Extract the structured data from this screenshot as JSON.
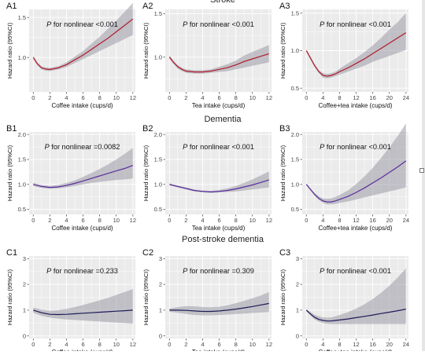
{
  "rows": [
    {
      "title": "Stroke"
    },
    {
      "title": "Dementia"
    },
    {
      "title": "Post-stroke dementia"
    }
  ],
  "colors": {
    "background": "#ffffff",
    "panel": "#ebebeb",
    "grid": "#ffffff",
    "band": "#9b9ba6",
    "band_opacity": 0.55,
    "stroke_line": "#b2182b",
    "dementia_line": "#5b2c9f",
    "psd_line": "#1e1a57"
  },
  "chart_data": [
    {
      "id": "A1",
      "type": "line",
      "row": 0,
      "col": 0,
      "annotation_p": "P",
      "annotation_rest": " for nonlinear <0.001",
      "xlabel": "Coffee intake (cups/d)",
      "ylabel": "Hazard ratio (95%CI)",
      "xlim": [
        -0.5,
        12.3
      ],
      "ylim": [
        0.57,
        1.6
      ],
      "xticks": [
        0,
        2,
        4,
        6,
        8,
        10,
        12
      ],
      "yticks": [
        1.0,
        1.5
      ],
      "ytick_labels": [
        "1.0",
        "1.5"
      ],
      "line_color": "#b2182b",
      "x": [
        0,
        0.5,
        1,
        1.5,
        2,
        3,
        4,
        5,
        6,
        7,
        8,
        9,
        10,
        11,
        12
      ],
      "y": [
        1.0,
        0.92,
        0.87,
        0.855,
        0.85,
        0.87,
        0.91,
        0.97,
        1.03,
        1.1,
        1.17,
        1.24,
        1.32,
        1.4,
        1.48
      ],
      "lower": [
        0.98,
        0.9,
        0.85,
        0.835,
        0.83,
        0.85,
        0.88,
        0.93,
        0.98,
        1.03,
        1.08,
        1.13,
        1.18,
        1.23,
        1.28
      ],
      "upper": [
        1.02,
        0.94,
        0.89,
        0.875,
        0.87,
        0.89,
        0.94,
        1.01,
        1.08,
        1.17,
        1.26,
        1.36,
        1.46,
        1.57,
        1.68
      ]
    },
    {
      "id": "A2",
      "type": "line",
      "row": 0,
      "col": 1,
      "annotation_p": "P",
      "annotation_rest": " for nonlinear <0.001",
      "xlabel": "Tea intake (cups/d)",
      "ylabel": "Hazard ratio (95%CI)",
      "xlim": [
        -0.5,
        12.3
      ],
      "ylim": [
        0.6,
        1.55
      ],
      "xticks": [
        0,
        2,
        4,
        6,
        8,
        10,
        12
      ],
      "yticks": [
        1.0,
        1.5
      ],
      "ytick_labels": [
        "1.0",
        "1.5"
      ],
      "line_color": "#b2182b",
      "x": [
        0,
        0.5,
        1,
        1.5,
        2,
        3,
        4,
        5,
        6,
        7,
        8,
        9,
        10,
        11,
        12
      ],
      "y": [
        1.0,
        0.94,
        0.89,
        0.86,
        0.84,
        0.83,
        0.83,
        0.84,
        0.86,
        0.88,
        0.91,
        0.95,
        0.98,
        1.01,
        1.04
      ],
      "lower": [
        0.98,
        0.92,
        0.87,
        0.84,
        0.82,
        0.81,
        0.81,
        0.82,
        0.83,
        0.84,
        0.86,
        0.88,
        0.9,
        0.92,
        0.94
      ],
      "upper": [
        1.02,
        0.96,
        0.91,
        0.88,
        0.86,
        0.85,
        0.85,
        0.86,
        0.89,
        0.92,
        0.96,
        1.02,
        1.06,
        1.1,
        1.14
      ]
    },
    {
      "id": "A3",
      "type": "line",
      "row": 0,
      "col": 2,
      "annotation_p": "P",
      "annotation_rest": " for nonlinear <0.001",
      "xlabel": "Coffee+tea intake (cups/d)",
      "ylabel": "Hazard ratio (95%CI)",
      "xlim": [
        -1,
        24.6
      ],
      "ylim": [
        0.45,
        1.55
      ],
      "xticks": [
        0,
        4,
        8,
        12,
        16,
        20,
        24
      ],
      "yticks": [
        0.5,
        1.0,
        1.5
      ],
      "ytick_labels": [
        "0.5",
        "1.0",
        "1.5"
      ],
      "line_color": "#b2182b",
      "x": [
        0,
        1,
        2,
        3,
        4,
        5,
        6,
        7,
        8,
        10,
        12,
        14,
        16,
        18,
        20,
        22,
        24
      ],
      "y": [
        1.0,
        0.9,
        0.8,
        0.72,
        0.67,
        0.66,
        0.67,
        0.69,
        0.72,
        0.77,
        0.83,
        0.89,
        0.96,
        1.03,
        1.1,
        1.17,
        1.24
      ],
      "lower": [
        0.98,
        0.88,
        0.78,
        0.7,
        0.64,
        0.63,
        0.64,
        0.66,
        0.68,
        0.72,
        0.76,
        0.8,
        0.85,
        0.89,
        0.93,
        0.97,
        1.01
      ],
      "upper": [
        1.02,
        0.92,
        0.82,
        0.74,
        0.7,
        0.69,
        0.7,
        0.72,
        0.76,
        0.83,
        0.9,
        0.98,
        1.07,
        1.17,
        1.28,
        1.38,
        1.5
      ]
    },
    {
      "id": "B1",
      "type": "line",
      "row": 1,
      "col": 0,
      "annotation_p": "P",
      "annotation_rest": " for nonlinear =0.0082",
      "xlabel": "Coffee intake (cups/d)",
      "ylabel": "Hazard ratio (95%CI)",
      "xlim": [
        -0.5,
        12.3
      ],
      "ylim": [
        0.4,
        2.05
      ],
      "xticks": [
        0,
        2,
        4,
        6,
        8,
        10,
        12
      ],
      "yticks": [
        0.5,
        1.0,
        1.5,
        2.0
      ],
      "ytick_labels": [
        "0.5",
        "1.0",
        "1.5",
        "2.0"
      ],
      "line_color": "#5b2c9f",
      "x": [
        0,
        1,
        2,
        3,
        4,
        5,
        6,
        7,
        8,
        9,
        10,
        11,
        12
      ],
      "y": [
        1.0,
        0.96,
        0.94,
        0.95,
        0.98,
        1.02,
        1.07,
        1.12,
        1.17,
        1.22,
        1.27,
        1.32,
        1.38
      ],
      "lower": [
        0.97,
        0.93,
        0.91,
        0.92,
        0.94,
        0.97,
        1.0,
        1.03,
        1.05,
        1.07,
        1.09,
        1.1,
        1.12
      ],
      "upper": [
        1.03,
        0.99,
        0.97,
        0.99,
        1.03,
        1.08,
        1.15,
        1.23,
        1.31,
        1.4,
        1.5,
        1.61,
        1.73
      ]
    },
    {
      "id": "B2",
      "type": "line",
      "row": 1,
      "col": 1,
      "annotation_p": "P",
      "annotation_rest": " for nonlinear <0.001",
      "xlabel": "Tea intake (cups/d)",
      "ylabel": "Hazard ratio (95%CI)",
      "xlim": [
        -0.5,
        12.3
      ],
      "ylim": [
        0.4,
        2.05
      ],
      "xticks": [
        0,
        2,
        4,
        6,
        8,
        10,
        12
      ],
      "yticks": [
        0.5,
        1.0,
        1.5,
        2.0
      ],
      "ytick_labels": [
        "0.5",
        "1.0",
        "1.5",
        "2.0"
      ],
      "line_color": "#5b2c9f",
      "x": [
        0,
        1,
        2,
        3,
        4,
        5,
        6,
        7,
        8,
        9,
        10,
        11,
        12
      ],
      "y": [
        1.0,
        0.96,
        0.92,
        0.88,
        0.86,
        0.85,
        0.86,
        0.88,
        0.91,
        0.95,
        0.99,
        1.04,
        1.09
      ],
      "lower": [
        0.98,
        0.94,
        0.9,
        0.86,
        0.84,
        0.83,
        0.84,
        0.85,
        0.86,
        0.88,
        0.9,
        0.92,
        0.94
      ],
      "upper": [
        1.02,
        0.98,
        0.94,
        0.9,
        0.88,
        0.87,
        0.89,
        0.92,
        0.97,
        1.03,
        1.1,
        1.18,
        1.26
      ]
    },
    {
      "id": "B3",
      "type": "line",
      "row": 1,
      "col": 2,
      "annotation_p": "P",
      "annotation_rest": " for nonlinear <0.001",
      "xlabel": "Coffee+tea intake (cups/d)",
      "ylabel": "Hazard ratio (95%CI)",
      "xlim": [
        -1,
        24.6
      ],
      "ylim": [
        0.4,
        2.05
      ],
      "xticks": [
        0,
        4,
        8,
        12,
        16,
        20,
        24
      ],
      "yticks": [
        0.5,
        1.0,
        1.5,
        2.0
      ],
      "ytick_labels": [
        "0.5",
        "1.0",
        "1.5",
        "2.0"
      ],
      "line_color": "#5b2c9f",
      "x": [
        0,
        1,
        2,
        3,
        4,
        5,
        6,
        7,
        8,
        10,
        12,
        14,
        16,
        18,
        20,
        22,
        24
      ],
      "y": [
        1.0,
        0.9,
        0.8,
        0.72,
        0.67,
        0.65,
        0.65,
        0.67,
        0.7,
        0.76,
        0.84,
        0.93,
        1.03,
        1.13,
        1.24,
        1.35,
        1.47
      ],
      "lower": [
        0.98,
        0.88,
        0.77,
        0.69,
        0.63,
        0.6,
        0.6,
        0.61,
        0.63,
        0.66,
        0.7,
        0.74,
        0.78,
        0.82,
        0.86,
        0.9,
        0.94
      ],
      "upper": [
        1.02,
        0.92,
        0.83,
        0.76,
        0.72,
        0.71,
        0.72,
        0.75,
        0.79,
        0.88,
        1.01,
        1.16,
        1.33,
        1.53,
        1.74,
        1.97,
        2.22
      ]
    },
    {
      "id": "C1",
      "type": "line",
      "row": 2,
      "col": 0,
      "annotation_p": "P",
      "annotation_rest": " for nonlinear =0.233",
      "xlabel": "Coffee intake (cups/d)",
      "ylabel": "Hazard ratio (95%CI)",
      "xlim": [
        -0.5,
        12.3
      ],
      "ylim": [
        -0.1,
        3.1
      ],
      "xticks": [
        0,
        2,
        4,
        6,
        8,
        10,
        12
      ],
      "yticks": [
        0,
        1,
        2,
        3
      ],
      "ytick_labels": [
        "0",
        "1",
        "2",
        "3"
      ],
      "line_color": "#1e1a57",
      "x": [
        0,
        1,
        2,
        3,
        4,
        5,
        6,
        7,
        8,
        9,
        10,
        11,
        12
      ],
      "y": [
        1.0,
        0.9,
        0.84,
        0.83,
        0.84,
        0.86,
        0.88,
        0.9,
        0.92,
        0.94,
        0.96,
        0.98,
        1.0
      ],
      "lower": [
        0.9,
        0.78,
        0.71,
        0.67,
        0.64,
        0.62,
        0.6,
        0.58,
        0.56,
        0.54,
        0.52,
        0.5,
        0.48
      ],
      "upper": [
        1.1,
        1.02,
        0.98,
        1.0,
        1.05,
        1.12,
        1.2,
        1.29,
        1.38,
        1.48,
        1.59,
        1.7,
        1.82
      ]
    },
    {
      "id": "C2",
      "type": "line",
      "row": 2,
      "col": 1,
      "annotation_p": "P",
      "annotation_rest": " for nonlinear =0.309",
      "xlabel": "Tea intake (cups/d)",
      "ylabel": "Hazard ratio (95%CI)",
      "xlim": [
        -0.5,
        12.3
      ],
      "ylim": [
        -0.1,
        3.1
      ],
      "xticks": [
        0,
        2,
        4,
        6,
        8,
        10,
        12
      ],
      "yticks": [
        0,
        1,
        2,
        3
      ],
      "ytick_labels": [
        "0",
        "1",
        "2",
        "3"
      ],
      "line_color": "#1e1a57",
      "x": [
        0,
        1,
        2,
        3,
        4,
        5,
        6,
        7,
        8,
        9,
        10,
        11,
        12
      ],
      "y": [
        1.0,
        1.0,
        0.99,
        0.97,
        0.95,
        0.95,
        0.97,
        1.0,
        1.04,
        1.09,
        1.14,
        1.2,
        1.26
      ],
      "lower": [
        0.94,
        0.9,
        0.85,
        0.81,
        0.8,
        0.8,
        0.81,
        0.83,
        0.85,
        0.87,
        0.89,
        0.91,
        0.93
      ],
      "upper": [
        1.06,
        1.12,
        1.16,
        1.15,
        1.12,
        1.11,
        1.13,
        1.19,
        1.27,
        1.36,
        1.46,
        1.57,
        1.7
      ]
    },
    {
      "id": "C3",
      "type": "line",
      "row": 2,
      "col": 2,
      "annotation_p": "P",
      "annotation_rest": " for nonlinear <0.001",
      "xlabel": "Coffee+tea intake (cups/d)",
      "ylabel": "Hazard ratio (95%CI)",
      "xlim": [
        -1,
        24.6
      ],
      "ylim": [
        -0.1,
        3.1
      ],
      "xticks": [
        0,
        4,
        8,
        12,
        16,
        20,
        24
      ],
      "yticks": [
        0,
        1,
        2,
        3
      ],
      "ytick_labels": [
        "0",
        "1",
        "2",
        "3"
      ],
      "line_color": "#1e1a57",
      "x": [
        0,
        1,
        2,
        3,
        4,
        5,
        6,
        7,
        8,
        10,
        12,
        14,
        16,
        18,
        20,
        22,
        24
      ],
      "y": [
        1.0,
        0.85,
        0.72,
        0.64,
        0.6,
        0.58,
        0.58,
        0.6,
        0.62,
        0.66,
        0.71,
        0.76,
        0.81,
        0.87,
        0.92,
        0.98,
        1.04
      ],
      "lower": [
        0.96,
        0.79,
        0.64,
        0.55,
        0.5,
        0.47,
        0.46,
        0.46,
        0.46,
        0.46,
        0.46,
        0.46,
        0.46,
        0.46,
        0.46,
        0.46,
        0.46
      ],
      "upper": [
        1.04,
        0.93,
        0.82,
        0.76,
        0.72,
        0.71,
        0.72,
        0.76,
        0.81,
        0.92,
        1.06,
        1.23,
        1.43,
        1.67,
        1.95,
        2.27,
        2.62
      ]
    }
  ]
}
